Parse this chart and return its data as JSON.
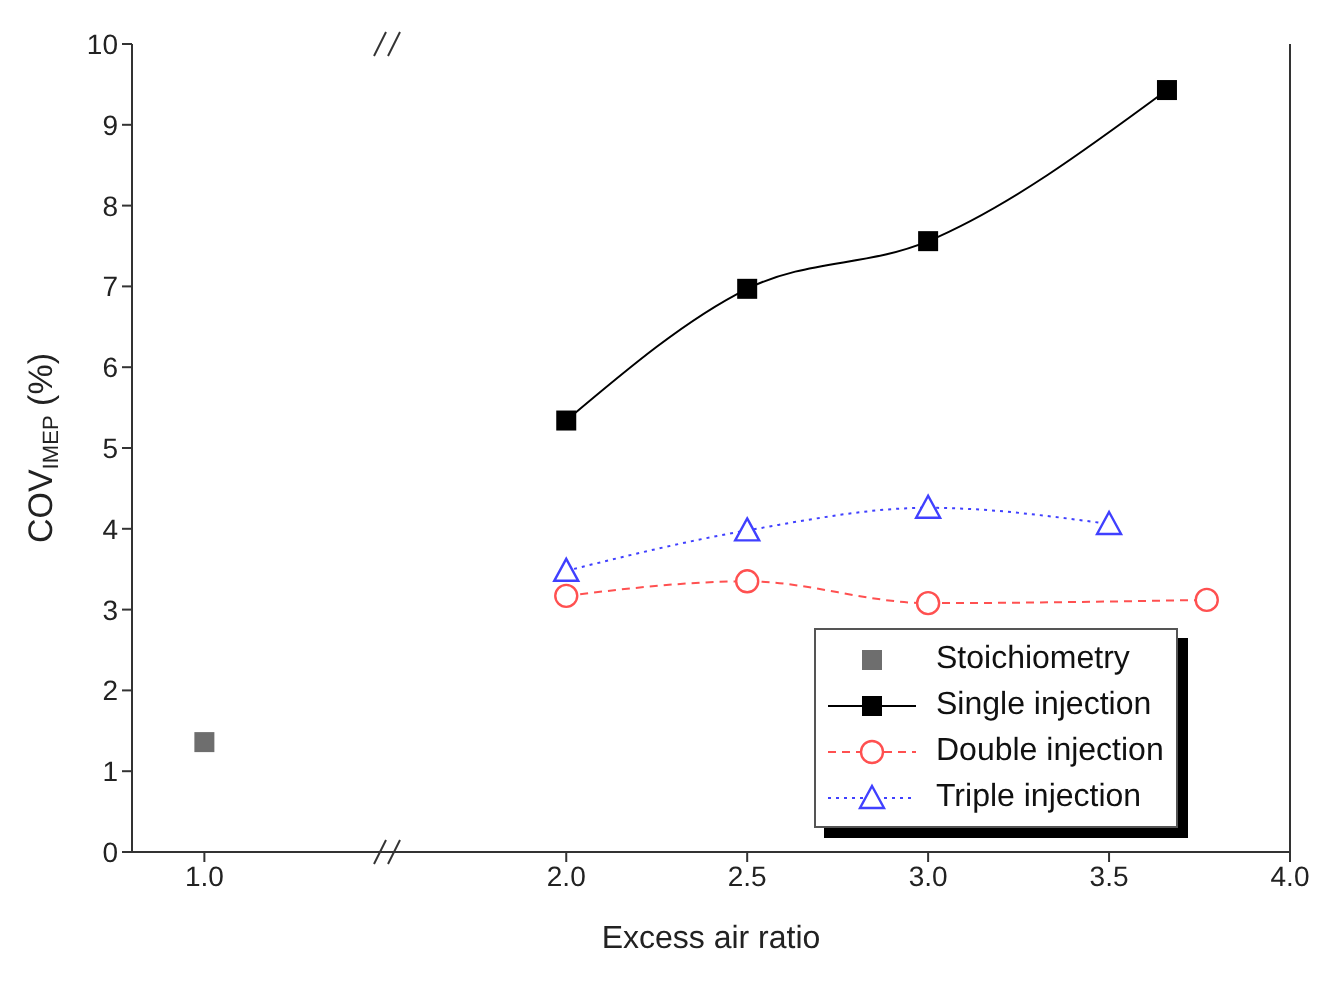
{
  "chart_data": {
    "type": "line",
    "xlabel": "Excess air ratio",
    "ylabel": "COV$_{IMEP}$ (%)",
    "xlim": [
      0.8,
      4.0
    ],
    "xticks": [
      {
        "value": 1.0,
        "label": "1.0"
      },
      {
        "value": 2.0,
        "label": "2.0"
      },
      {
        "value": 2.5,
        "label": "2.5"
      },
      {
        "value": 3.0,
        "label": "3.0"
      },
      {
        "value": 3.5,
        "label": "3.5"
      },
      {
        "value": 4.0,
        "label": "4.0"
      }
    ],
    "ylim": [
      0,
      10
    ],
    "yticks": [
      0,
      1,
      2,
      3,
      4,
      5,
      6,
      7,
      8,
      9,
      10
    ],
    "grid": false,
    "legend": "bottom right",
    "series": [
      {
        "name": "Stoichiometry",
        "type": "scatter",
        "color": "#6e6e6e",
        "marker": "square",
        "x": [
          1.0
        ],
        "values": [
          1.36
        ]
      },
      {
        "name": "Single injection",
        "color": "#000000",
        "marker": "square",
        "line_style": "solid",
        "x": [
          2.0,
          2.5,
          3.0,
          3.66
        ],
        "values": [
          5.34,
          6.97,
          7.56,
          9.43
        ]
      },
      {
        "name": "Double injection",
        "color": "#ff5050",
        "marker": "circle",
        "line_style": "dashed",
        "x": [
          2.0,
          2.5,
          3.0,
          3.77
        ],
        "values": [
          3.17,
          3.35,
          3.08,
          3.12
        ]
      },
      {
        "name": "Triple injection",
        "color": "#4040ff",
        "marker": "triangle",
        "line_style": "dotted",
        "x": [
          2.0,
          2.5,
          3.0,
          3.5
        ],
        "values": [
          3.48,
          3.98,
          4.26,
          4.06
        ]
      }
    ]
  }
}
